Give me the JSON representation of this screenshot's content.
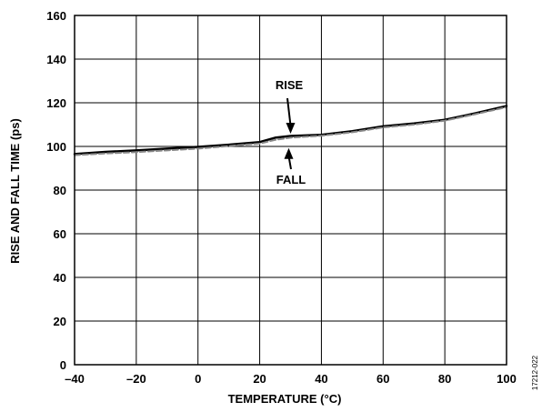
{
  "chart_data": {
    "type": "line",
    "title": "",
    "xlabel": "TEMPERATURE (°C)",
    "ylabel": "RISE AND FALL TIME (ps)",
    "xlim": [
      -40,
      100
    ],
    "ylim": [
      0,
      160
    ],
    "x_ticks": [
      -40,
      -20,
      0,
      20,
      40,
      60,
      80,
      100
    ],
    "x_tick_labels": [
      "–40",
      "–20",
      "0",
      "20",
      "40",
      "60",
      "80",
      "100"
    ],
    "y_ticks": [
      0,
      20,
      40,
      60,
      80,
      100,
      120,
      140,
      160
    ],
    "y_tick_labels": [
      "0",
      "20",
      "40",
      "60",
      "80",
      "100",
      "120",
      "140",
      "160"
    ],
    "grid": true,
    "series": [
      {
        "name": "RISE",
        "color": "#000000",
        "style": "solid",
        "x": [
          -40,
          -30,
          -20,
          -10,
          0,
          10,
          20,
          25,
          30,
          40,
          50,
          60,
          70,
          80,
          90,
          100
        ],
        "y": [
          96.5,
          97.5,
          98.2,
          99.0,
          99.8,
          100.8,
          102.0,
          104.0,
          104.8,
          105.3,
          107.0,
          109.2,
          110.5,
          112.2,
          115.2,
          118.5
        ]
      },
      {
        "name": "FALL",
        "color": "#888888",
        "style": "dashed",
        "x": [
          -40,
          -30,
          -20,
          -10,
          0,
          10,
          20,
          25,
          30,
          40,
          50,
          60,
          70,
          80,
          90,
          100
        ],
        "y": [
          96.0,
          96.8,
          97.4,
          98.2,
          99.0,
          100.2,
          101.3,
          103.0,
          104.0,
          104.9,
          106.5,
          108.7,
          110.0,
          111.8,
          114.8,
          118.0
        ]
      }
    ],
    "annotations": [
      {
        "text": "RISE",
        "arrow_to": {
          "x": 30,
          "y": 105
        }
      },
      {
        "text": "FALL",
        "arrow_to": {
          "x": 30,
          "y": 103
        }
      }
    ],
    "figure_id": "17212-022"
  }
}
